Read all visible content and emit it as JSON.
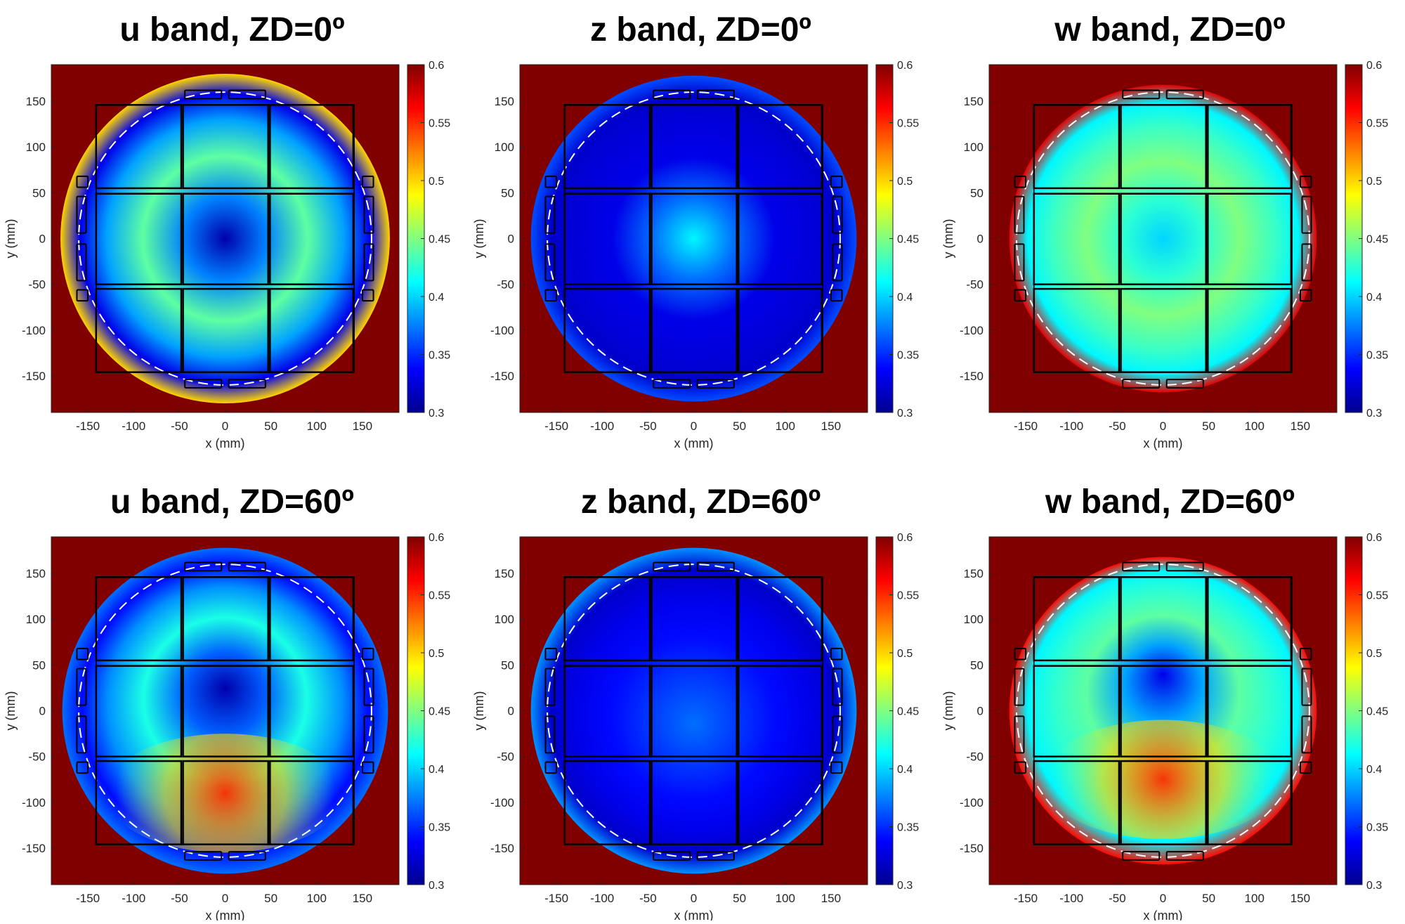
{
  "figure": {
    "panels": [
      {
        "id": "u0",
        "title": "u band, ZD=0º"
      },
      {
        "id": "z0",
        "title": "z band, ZD=0º"
      },
      {
        "id": "w0",
        "title": "w band, ZD=0º"
      },
      {
        "id": "u60",
        "title": "u band, ZD=60º"
      },
      {
        "id": "z60",
        "title": "z band, ZD=60º"
      },
      {
        "id": "w60",
        "title": "w band, ZD=60º"
      }
    ],
    "colors": {
      "background_saturated": "#800000",
      "outline": "#000000",
      "dashed_circle": "#ffffff",
      "colormap": [
        "#00008f",
        "#0000ff",
        "#0080ff",
        "#00ffff",
        "#80ff80",
        "#ffff00",
        "#ff8000",
        "#ff0000",
        "#800000"
      ]
    }
  },
  "chart_data": [
    {
      "type": "heatmap",
      "title": "u band, ZD=0º",
      "xlabel": "x (mm)",
      "ylabel": "y (mm)",
      "xlim": [
        -190,
        190
      ],
      "ylim": [
        -190,
        190
      ],
      "x_ticks": [
        "-150",
        "-100",
        "-50",
        "0",
        "50",
        "100",
        "150"
      ],
      "y_ticks": [
        "150",
        "100",
        "50",
        "0",
        "-50",
        "-100",
        "-150"
      ],
      "colorbar": {
        "min": 0.3,
        "max": 0.6,
        "ticks": [
          "0.6",
          "0.55",
          "0.5",
          "0.45",
          "0.4",
          "0.35",
          "0.3"
        ]
      },
      "aperture_radius_mm": 180,
      "field": {
        "center_value": 0.31,
        "ring_value": 0.44,
        "mid_value": 0.33,
        "edge_value": 0.5,
        "dip_y_mm": 0
      }
    },
    {
      "type": "heatmap",
      "title": "z band, ZD=0º",
      "xlabel": "x (mm)",
      "ylabel": "y (mm)",
      "xlim": [
        -190,
        190
      ],
      "ylim": [
        -190,
        190
      ],
      "x_ticks": [
        "-150",
        "-100",
        "-50",
        "0",
        "50",
        "100",
        "150"
      ],
      "y_ticks": [
        "150",
        "100",
        "50",
        "0",
        "-50",
        "-100",
        "-150"
      ],
      "colorbar": {
        "min": 0.3,
        "max": 0.6,
        "ticks": [
          "0.6",
          "0.55",
          "0.5",
          "0.45",
          "0.4",
          "0.35",
          "0.3"
        ]
      },
      "aperture_radius_mm": 178,
      "field": {
        "center_value": 0.41,
        "ring_value": 0.33,
        "mid_value": 0.32,
        "edge_value": 0.36,
        "dip_y_mm": 0
      }
    },
    {
      "type": "heatmap",
      "title": "w band, ZD=0º",
      "xlabel": "x (mm)",
      "ylabel": "y (mm)",
      "xlim": [
        -190,
        190
      ],
      "ylim": [
        -190,
        190
      ],
      "x_ticks": [
        "-150",
        "-100",
        "-50",
        "0",
        "50",
        "100",
        "150"
      ],
      "y_ticks": [
        "150",
        "100",
        "50",
        "0",
        "-50",
        "-100",
        "-150"
      ],
      "colorbar": {
        "min": 0.3,
        "max": 0.6,
        "ticks": [
          "0.6",
          "0.55",
          "0.5",
          "0.45",
          "0.4",
          "0.35",
          "0.3"
        ]
      },
      "aperture_radius_mm": 168,
      "field": {
        "center_value": 0.4,
        "ring_value": 0.45,
        "mid_value": 0.41,
        "edge_value": 0.57,
        "dip_y_mm": 0
      }
    },
    {
      "type": "heatmap",
      "title": "u band, ZD=60º",
      "xlabel": "x (mm)",
      "ylabel": "y (mm)",
      "xlim": [
        -190,
        190
      ],
      "ylim": [
        -190,
        190
      ],
      "x_ticks": [
        "-150",
        "-100",
        "-50",
        "0",
        "50",
        "100",
        "150"
      ],
      "y_ticks": [
        "150",
        "100",
        "50",
        "0",
        "-50",
        "-100",
        "-150"
      ],
      "colorbar": {
        "min": 0.3,
        "max": 0.6,
        "ticks": [
          "0.6",
          "0.55",
          "0.5",
          "0.45",
          "0.4",
          "0.35",
          "0.3"
        ]
      },
      "aperture_radius_mm": 178,
      "field": {
        "center_value": 0.31,
        "ring_value": 0.42,
        "mid_value": 0.34,
        "edge_value": 0.37,
        "dip_y_mm": 25,
        "hot_value": 0.55,
        "hot_y_mm": -90
      }
    },
    {
      "type": "heatmap",
      "title": "z band, ZD=60º",
      "xlabel": "x (mm)",
      "ylabel": "y (mm)",
      "xlim": [
        -190,
        190
      ],
      "ylim": [
        -190,
        190
      ],
      "x_ticks": [
        "-150",
        "-100",
        "-50",
        "0",
        "50",
        "100",
        "150"
      ],
      "y_ticks": [
        "150",
        "100",
        "50",
        "0",
        "-50",
        "-100",
        "-150"
      ],
      "colorbar": {
        "min": 0.3,
        "max": 0.6,
        "ticks": [
          "0.6",
          "0.55",
          "0.5",
          "0.45",
          "0.4",
          "0.35",
          "0.3"
        ]
      },
      "aperture_radius_mm": 178,
      "field": {
        "center_value": 0.37,
        "ring_value": 0.34,
        "mid_value": 0.32,
        "edge_value": 0.38,
        "dip_y_mm": -15
      }
    },
    {
      "type": "heatmap",
      "title": "w band, ZD=60º",
      "xlabel": "x (mm)",
      "ylabel": "y (mm)",
      "xlim": [
        -190,
        190
      ],
      "ylim": [
        -190,
        190
      ],
      "x_ticks": [
        "-150",
        "-100",
        "-50",
        "0",
        "50",
        "100",
        "150"
      ],
      "y_ticks": [
        "150",
        "100",
        "50",
        "0",
        "-50",
        "-100",
        "-150"
      ],
      "colorbar": {
        "min": 0.3,
        "max": 0.6,
        "ticks": [
          "0.6",
          "0.55",
          "0.5",
          "0.45",
          "0.4",
          "0.35",
          "0.3"
        ]
      },
      "aperture_radius_mm": 168,
      "field": {
        "center_value": 0.33,
        "ring_value": 0.44,
        "mid_value": 0.41,
        "edge_value": 0.56,
        "dip_y_mm": 40,
        "hot_value": 0.55,
        "hot_y_mm": -75
      }
    }
  ]
}
